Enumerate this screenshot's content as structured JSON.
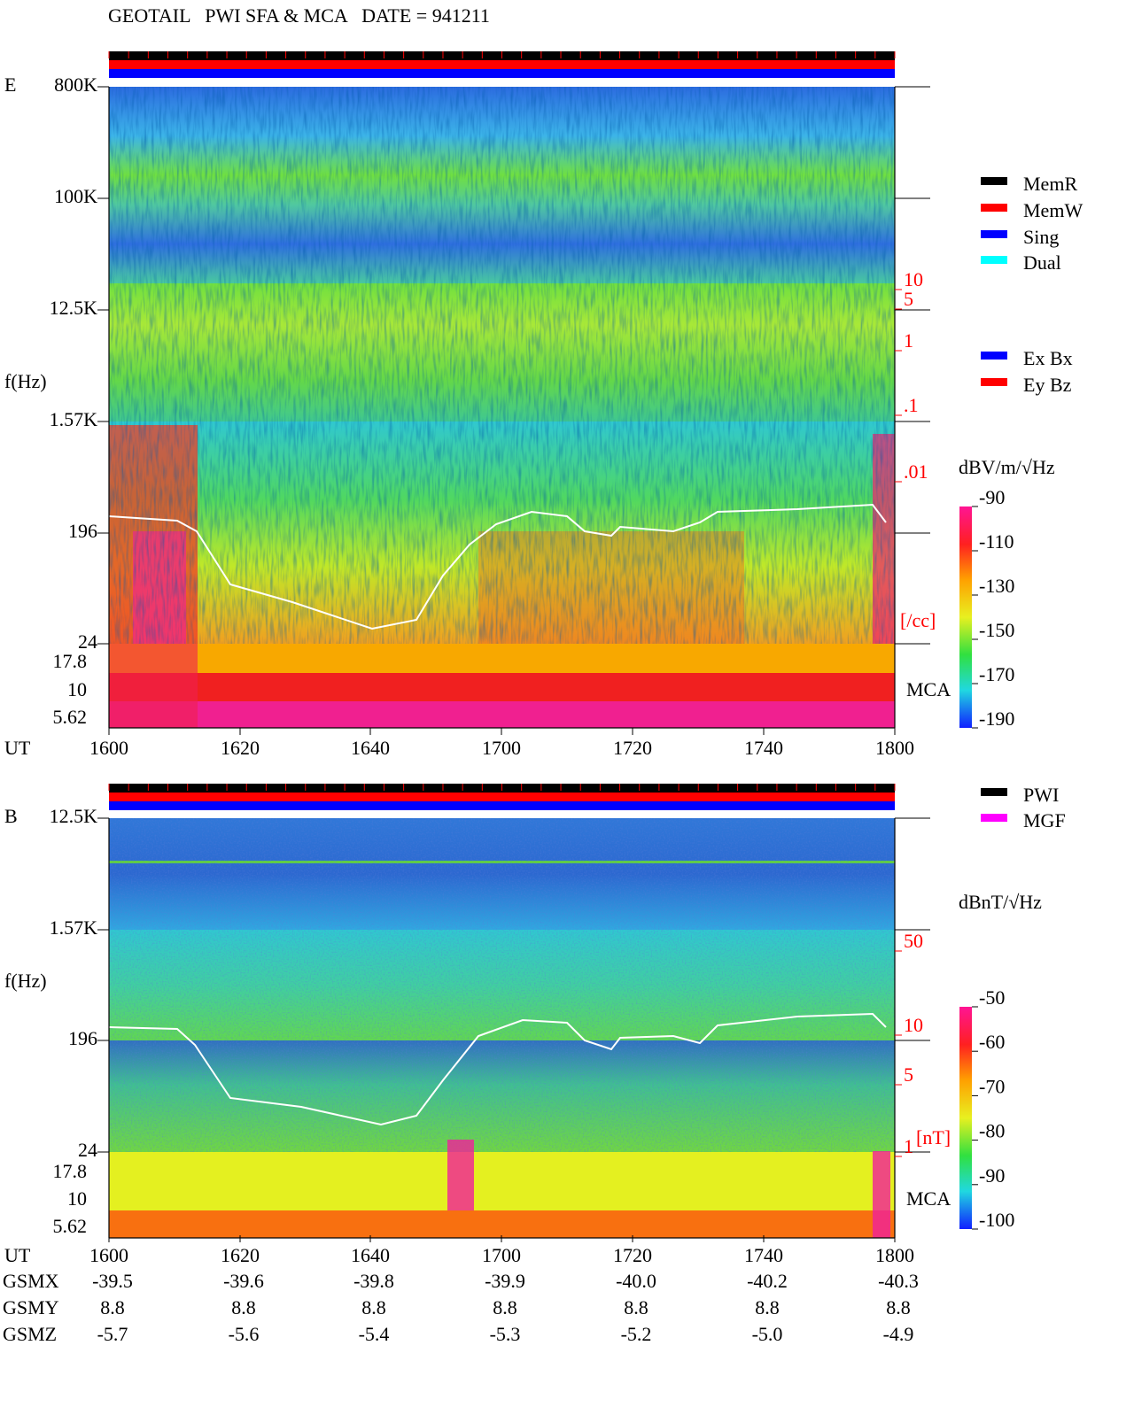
{
  "header": {
    "title": "GEOTAIL   PWI SFA & MCA   DATE = 941211"
  },
  "panel_e": {
    "label": "E",
    "y_axis_label": "f(Hz)",
    "y_ticks": [
      "800K",
      "100K",
      "12.5K",
      "1.57K",
      "196",
      "24"
    ],
    "mca_ticks": [
      "17.8",
      "10",
      "5.62"
    ],
    "density_ticks": [
      "10",
      "5",
      "1",
      ".1",
      ".01"
    ],
    "density_unit": "[/cc]",
    "mca_label": "MCA",
    "x_axis_label": "UT",
    "x_ticks": [
      "1600",
      "1620",
      "1640",
      "1700",
      "1720",
      "1740",
      "1800"
    ],
    "legend": [
      {
        "label": "MemR",
        "color": "#000000"
      },
      {
        "label": "MemW",
        "color": "#ff0000"
      },
      {
        "label": "Sing",
        "color": "#0000ff"
      },
      {
        "label": "Dual",
        "color": "#00ffff"
      }
    ],
    "legend2": [
      {
        "label": "Ex Bx",
        "color": "#0000ff"
      },
      {
        "label": "Ey Bz",
        "color": "#ff0000"
      }
    ],
    "colorbar": {
      "label": "dBV/m/√Hz",
      "ticks": [
        "-90",
        "-110",
        "-130",
        "-150",
        "-170",
        "-190"
      ]
    }
  },
  "panel_b": {
    "label": "B",
    "y_axis_label": "f(Hz)",
    "y_ticks": [
      "12.5K",
      "1.57K",
      "196",
      "24"
    ],
    "mca_ticks": [
      "17.8",
      "10",
      "5.62"
    ],
    "density_ticks": [
      "50",
      "10",
      "5",
      "1"
    ],
    "density_unit": "[nT]",
    "mca_label": "MCA",
    "x_axis_label": "UT",
    "x_ticks": [
      "1600",
      "1620",
      "1640",
      "1700",
      "1720",
      "1740",
      "1800"
    ],
    "legend": [
      {
        "label": "PWI",
        "color": "#000000"
      },
      {
        "label": "MGF",
        "color": "#ff00ff"
      }
    ],
    "colorbar": {
      "label": "dBnT/√Hz",
      "ticks": [
        "-50",
        "-60",
        "-70",
        "-80",
        "-90",
        "-100"
      ]
    }
  },
  "orbit": {
    "rows": [
      {
        "label": "GSMX",
        "values": [
          "-39.5",
          "-39.6",
          "-39.8",
          "-39.9",
          "-40.0",
          "-40.2",
          "-40.3"
        ]
      },
      {
        "label": "GSMY",
        "values": [
          "8.8",
          "8.8",
          "8.8",
          "8.8",
          "8.8",
          "8.8",
          "8.8"
        ]
      },
      {
        "label": "GSMZ",
        "values": [
          "-5.7",
          "-5.6",
          "-5.4",
          "-5.3",
          "-5.2",
          "-5.0",
          "-4.9"
        ]
      }
    ]
  }
}
